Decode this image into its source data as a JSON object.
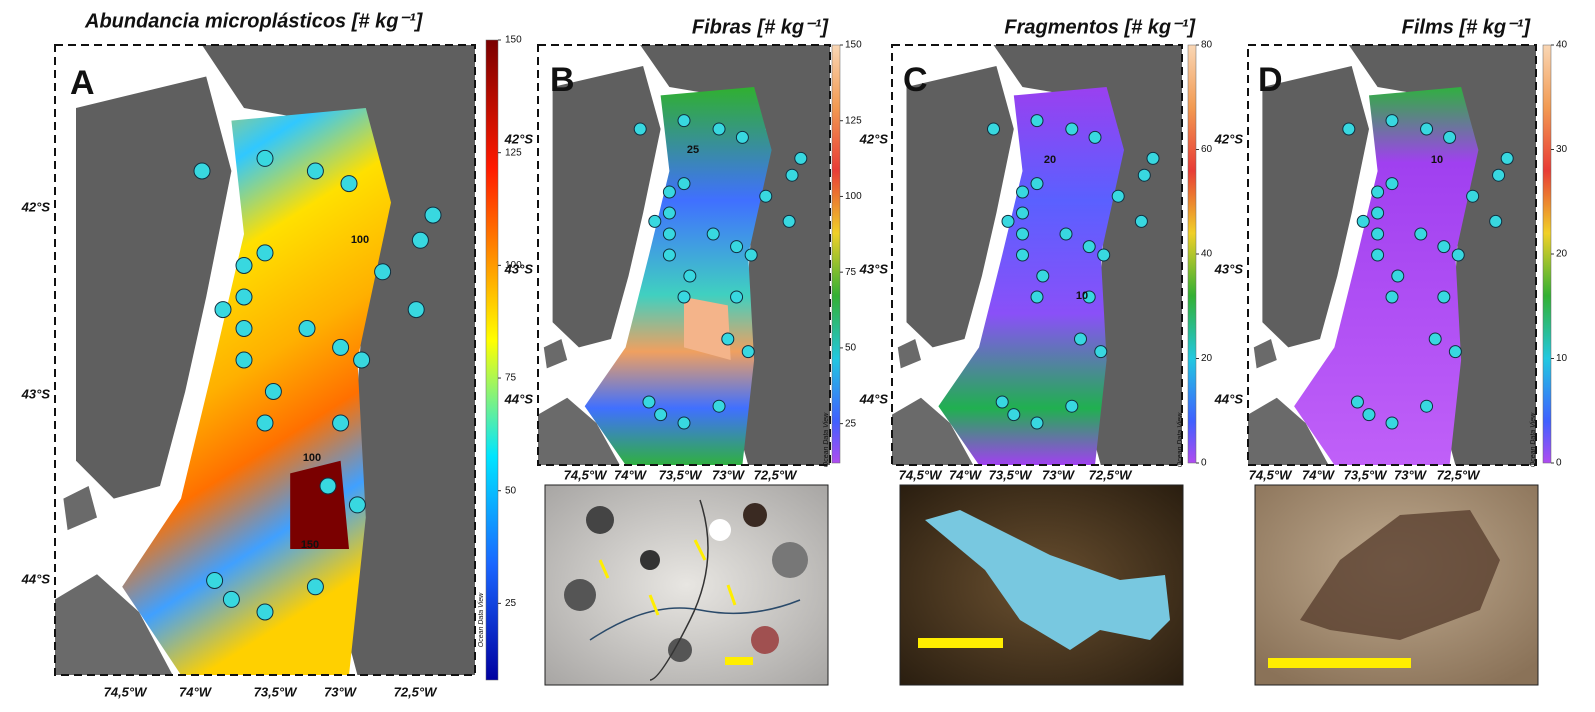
{
  "panels": [
    {
      "letter": "A",
      "title": "Abundancia microplásticos [# kg⁻¹]",
      "colorbar": {
        "lim": [
          8,
          150
        ],
        "ticks": [
          25,
          50,
          75,
          100,
          125,
          150
        ]
      },
      "lon_labels": [
        "74,5°W",
        "74°W",
        "73,5°W",
        "73°W",
        "72,5°W"
      ],
      "lat_labels": [
        "42°S",
        "43°S",
        "44°S"
      ],
      "contour_labels": [
        "100",
        "100",
        "150"
      ],
      "credit": "Ocean Data View"
    },
    {
      "letter": "B",
      "title": "Fibras [# kg⁻¹]",
      "colorbar": {
        "lim": [
          12,
          150
        ],
        "ticks": [
          25,
          50,
          75,
          100,
          125,
          150
        ]
      },
      "lon_labels": [
        "74,5°W",
        "74°W",
        "73,5°W",
        "73°W",
        "72,5°W"
      ],
      "lat_labels": [
        "42°S",
        "43°S",
        "44°S"
      ],
      "contour_labels": [
        "25"
      ],
      "credit": "Ocean Data View"
    },
    {
      "letter": "C",
      "title": "Fragmentos [# kg⁻¹]",
      "colorbar": {
        "lim": [
          0,
          80
        ],
        "ticks": [
          0,
          20,
          40,
          60,
          80
        ]
      },
      "lon_labels": [
        "74,5°W",
        "74°W",
        "73,5°W",
        "73°W",
        "72,5°W"
      ],
      "lat_labels": [
        "42°S",
        "43°S",
        "44°S"
      ],
      "contour_labels": [
        "20",
        "10"
      ],
      "credit": "Ocean Data View"
    },
    {
      "letter": "D",
      "title": "Films [# kg⁻¹]",
      "colorbar": {
        "lim": [
          0,
          40
        ],
        "ticks": [
          0,
          10,
          20,
          30,
          40
        ]
      },
      "lon_labels": [
        "74,5°W",
        "74°W",
        "73,5°W",
        "73°W",
        "72,5°W"
      ],
      "lat_labels": [
        "42°S",
        "43°S",
        "44°S"
      ],
      "contour_labels": [
        "10"
      ],
      "credit": "Ocean Data View"
    }
  ]
}
